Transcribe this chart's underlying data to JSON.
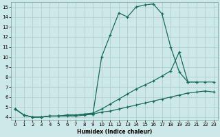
{
  "xlabel": "Humidex (Indice chaleur)",
  "bg_color": "#cce8e8",
  "grid_color": "#aacccc",
  "line_color": "#1a6b5a",
  "xlim": [
    -0.5,
    23.5
  ],
  "ylim": [
    3.7,
    15.5
  ],
  "xticks": [
    0,
    1,
    2,
    3,
    4,
    5,
    6,
    7,
    8,
    9,
    10,
    11,
    12,
    13,
    14,
    15,
    16,
    17,
    18,
    19,
    20,
    21,
    22,
    23
  ],
  "yticks": [
    4,
    5,
    6,
    7,
    8,
    9,
    10,
    11,
    12,
    13,
    14,
    15
  ],
  "line1_x": [
    0,
    1,
    2,
    3,
    4,
    5,
    6,
    7,
    8,
    9,
    10,
    11,
    12,
    13,
    14,
    15,
    16,
    17,
    18,
    19,
    20,
    21
  ],
  "line1_y": [
    4.8,
    4.2,
    4.0,
    4.0,
    4.1,
    4.1,
    4.1,
    4.1,
    4.2,
    4.3,
    10.0,
    12.2,
    14.4,
    14.0,
    15.0,
    15.2,
    15.3,
    14.3,
    11.0,
    8.5,
    7.5,
    7.5
  ],
  "line2_x": [
    0,
    1,
    2,
    3,
    4,
    5,
    6,
    7,
    8,
    9,
    10,
    11,
    12,
    13,
    14,
    15,
    16,
    17,
    18,
    19,
    20,
    21,
    22,
    23
  ],
  "line2_y": [
    4.8,
    4.2,
    4.0,
    4.0,
    4.1,
    4.1,
    4.2,
    4.2,
    4.3,
    4.4,
    4.8,
    5.3,
    5.8,
    6.3,
    6.8,
    7.2,
    7.6,
    8.1,
    8.6,
    10.5,
    7.5,
    7.5,
    7.5,
    7.5
  ],
  "line3_x": [
    0,
    1,
    2,
    3,
    4,
    5,
    6,
    7,
    8,
    9,
    10,
    11,
    12,
    13,
    14,
    15,
    16,
    17,
    18,
    19,
    20,
    21,
    22,
    23
  ],
  "line3_y": [
    4.8,
    4.2,
    4.0,
    4.0,
    4.1,
    4.1,
    4.2,
    4.2,
    4.3,
    4.3,
    4.5,
    4.6,
    4.8,
    5.0,
    5.2,
    5.4,
    5.6,
    5.8,
    6.0,
    6.2,
    6.4,
    6.5,
    6.6,
    6.5
  ]
}
